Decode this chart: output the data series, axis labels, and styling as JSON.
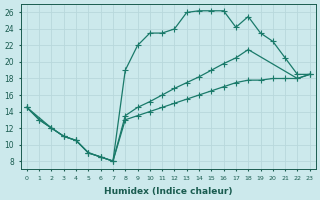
{
  "xlabel": "Humidex (Indice chaleur)",
  "background_color": "#cce9ec",
  "grid_color": "#b8d8dc",
  "line_color": "#1a7a6a",
  "xlim": [
    -0.5,
    23.5
  ],
  "ylim": [
    7,
    27
  ],
  "xticks": [
    0,
    1,
    2,
    3,
    4,
    5,
    6,
    7,
    8,
    9,
    10,
    11,
    12,
    13,
    14,
    15,
    16,
    17,
    18,
    19,
    20,
    21,
    22,
    23
  ],
  "yticks": [
    8,
    10,
    12,
    14,
    16,
    18,
    20,
    22,
    24,
    26
  ],
  "line1_x": [
    0,
    1,
    2,
    3,
    4,
    5,
    6,
    7,
    8,
    9,
    10,
    11,
    12,
    13,
    14,
    15,
    16,
    17,
    18,
    19,
    20,
    21,
    22,
    23
  ],
  "line1_y": [
    14.5,
    13.0,
    12.0,
    11.0,
    10.5,
    9.0,
    8.5,
    8.0,
    19.0,
    22.0,
    23.5,
    23.5,
    24.0,
    26.0,
    26.2,
    26.2,
    26.2,
    24.2,
    25.5,
    23.5,
    22.5,
    20.5,
    18.5,
    18.5
  ],
  "line2_x": [
    0,
    1,
    2,
    3,
    4,
    5,
    6,
    7,
    8,
    9,
    10,
    11,
    12,
    13,
    14,
    15,
    16,
    17,
    18,
    19,
    20,
    21,
    22,
    23
  ],
  "line2_y": [
    14.5,
    13.0,
    12.0,
    11.0,
    10.5,
    9.0,
    8.5,
    8.0,
    13.0,
    13.5,
    14.0,
    14.5,
    15.0,
    15.5,
    16.0,
    16.5,
    17.0,
    17.5,
    17.8,
    17.8,
    18.0,
    18.0,
    18.0,
    18.5
  ],
  "line3_x": [
    0,
    2,
    3,
    4,
    5,
    6,
    7,
    8,
    9,
    10,
    11,
    12,
    13,
    14,
    15,
    16,
    17,
    18,
    22,
    23
  ],
  "line3_y": [
    14.5,
    12.0,
    11.0,
    10.5,
    9.0,
    8.5,
    8.0,
    13.5,
    14.5,
    15.2,
    16.0,
    16.8,
    17.5,
    18.2,
    19.0,
    19.8,
    20.5,
    21.5,
    18.0,
    18.5
  ],
  "markersize": 2.0,
  "linewidth": 0.9
}
